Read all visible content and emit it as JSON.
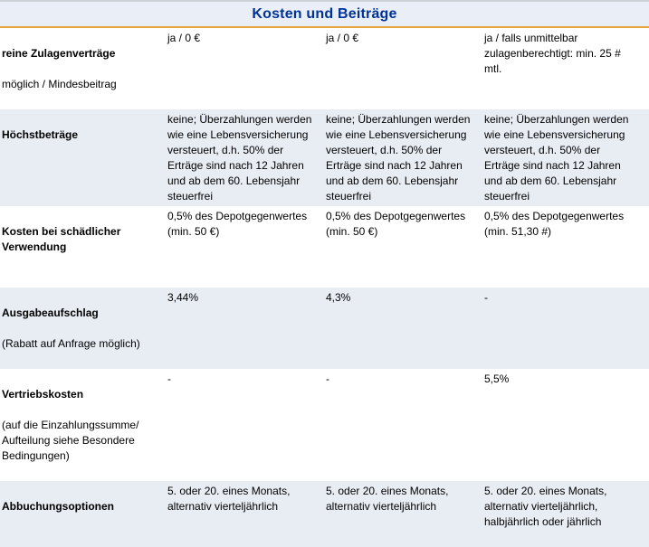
{
  "header": {
    "title": "Kosten und Beiträge"
  },
  "colors": {
    "title_text": "#003399",
    "title_band_bg": "#eaeef6",
    "accent_line": "#e8a33d",
    "top_line": "#cdd1d8",
    "shaded_row_bg": "#e8edf4",
    "body_text": "#000000"
  },
  "table": {
    "rows": [
      {
        "label_bold": "reine Zulagenverträge",
        "label_note": "möglich / Mindesbeitrag",
        "cells": [
          "ja / 0 €",
          "ja / 0 €",
          "ja / falls unmittelbar\nzulagenberechtigt: min. 25 #\nmtl."
        ],
        "shaded": false
      },
      {
        "label_bold": "Höchstbeträge",
        "label_note": "",
        "cells": [
          "keine; Überzahlungen werden\nwie eine Lebensversicherung\nversteuert, d.h. 50% der\nErträge sind nach 12 Jahren\nund ab dem 60. Lebensjahr\nsteuerfrei",
          "keine; Überzahlungen werden\nwie eine Lebensversicherung\nversteuert, d.h. 50% der\nErträge sind nach 12 Jahren\nund ab dem 60. Lebensjahr\nsteuerfrei",
          "keine; Überzahlungen werden\nwie eine Lebensversicherung\nversteuert, d.h. 50% der\nErträge sind nach 12 Jahren\nund ab dem 60. Lebensjahr\nsteuerfrei"
        ],
        "shaded": true
      },
      {
        "label_bold": "Kosten bei schädlicher\nVerwendung",
        "label_note": "",
        "cells": [
          "0,5% des Depotgegenwertes\n(min. 50 €)",
          "0,5% des Depotgegenwertes\n(min. 50 €)",
          "0,5% des Depotgegenwertes\n(min. 51,30 #)"
        ],
        "shaded": false
      },
      {
        "label_bold": "Ausgabeaufschlag",
        "label_note": "(Rabatt auf Anfrage möglich)",
        "cells": [
          "3,44%",
          "4,3%",
          "-"
        ],
        "shaded": true
      },
      {
        "label_bold": "Vertriebskosten",
        "label_note": "(auf die Einzahlungssumme/\nAufteilung siehe Besondere\nBedingungen)",
        "cells": [
          "-",
          "-",
          "5,5%"
        ],
        "shaded": false
      },
      {
        "label_bold": "Abbuchungsoptionen",
        "label_note": "",
        "cells": [
          "5. oder 20. eines Monats,\nalternativ vierteljährlich",
          "5. oder 20. eines Monats,\nalternativ vierteljährlich",
          "5. oder 20. eines Monats,\nalternativ vierteljährlich,\nhalbjährlich oder jährlich"
        ],
        "shaded": true
      }
    ]
  }
}
